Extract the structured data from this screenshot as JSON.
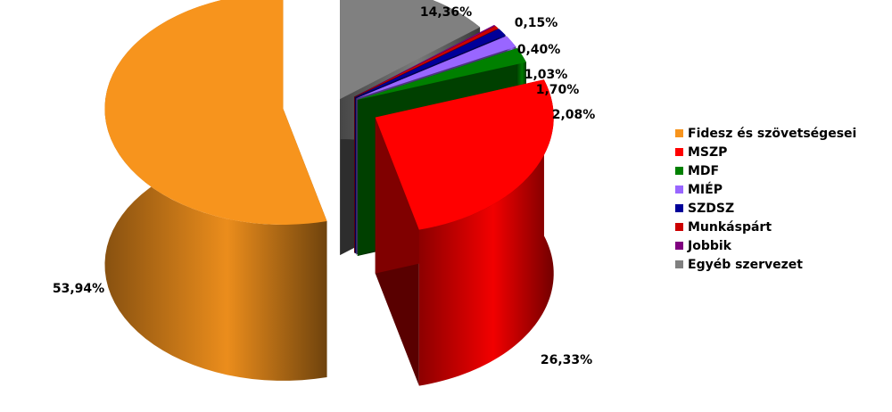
{
  "chart_data": {
    "type": "pie",
    "style": "3d-exploded",
    "legend_position": "right",
    "slices": [
      {
        "label": "Fidesz és szövetségesei",
        "value": 53.94,
        "value_label": "53,94%",
        "color": "#F7941D"
      },
      {
        "label": "MSZP",
        "value": 26.33,
        "value_label": "26,33%",
        "color": "#FF0000"
      },
      {
        "label": "MDF",
        "value": 2.08,
        "value_label": "2,08%",
        "color": "#008000"
      },
      {
        "label": "MIÉP",
        "value": 1.7,
        "value_label": "1,70%",
        "color": "#9966FF"
      },
      {
        "label": "SZDSZ",
        "value": 1.03,
        "value_label": "1,03%",
        "color": "#000099"
      },
      {
        "label": "Munkáspárt",
        "value": 0.4,
        "value_label": "0,40%",
        "color": "#CC0000"
      },
      {
        "label": "Jobbik",
        "value": 0.15,
        "value_label": "0,15%",
        "color": "#800080"
      },
      {
        "label": "Egyéb szervezet",
        "value": 14.36,
        "value_label": "14,36%",
        "color": "#808080"
      }
    ]
  }
}
